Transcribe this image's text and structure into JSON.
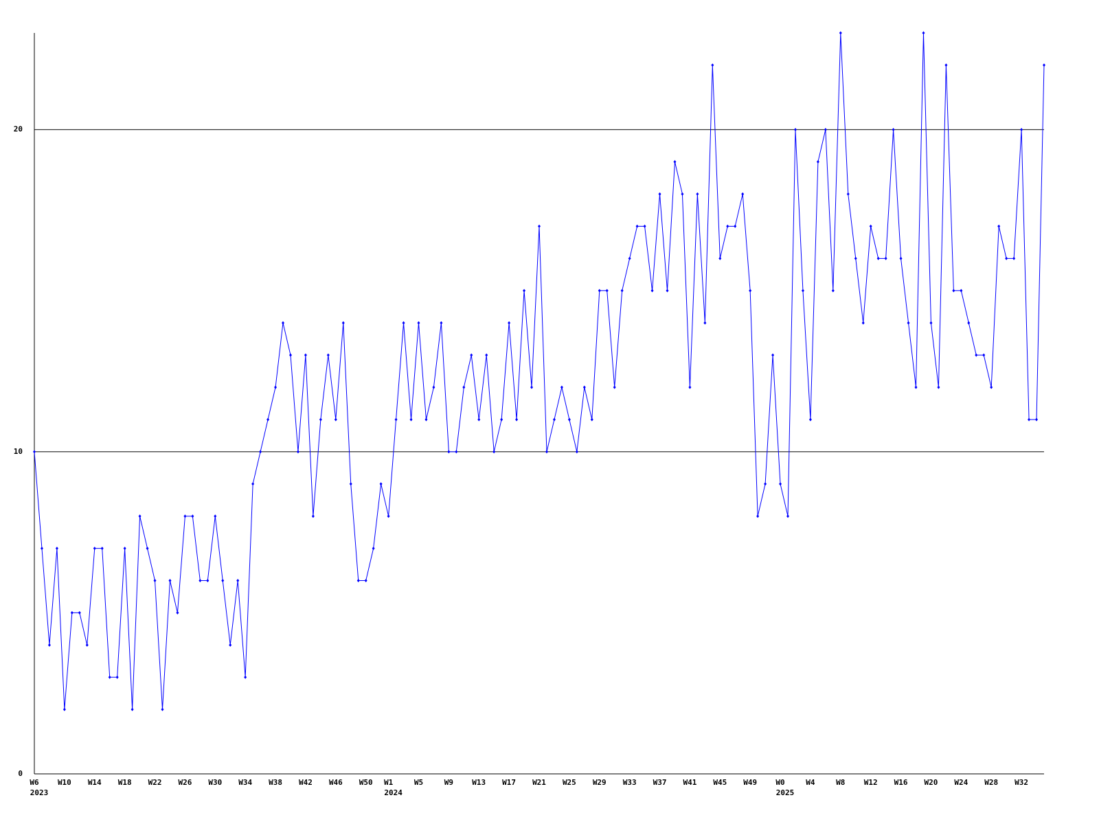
{
  "chart_data": {
    "type": "line",
    "color": "#0000ff",
    "categories": [
      "W6",
      null,
      null,
      null,
      "W10",
      null,
      null,
      null,
      "W14",
      null,
      null,
      null,
      "W18",
      null,
      null,
      null,
      "W22",
      null,
      null,
      null,
      "W26",
      null,
      null,
      null,
      "W30",
      null,
      null,
      null,
      "W34",
      null,
      null,
      null,
      "W38",
      null,
      null,
      null,
      "W42",
      null,
      null,
      null,
      "W46",
      null,
      null,
      null,
      "W50",
      null,
      null,
      "W1",
      null,
      null,
      null,
      "W5",
      null,
      null,
      null,
      "W9",
      null,
      null,
      null,
      "W13",
      null,
      null,
      null,
      "W17",
      null,
      null,
      null,
      "W21",
      null,
      null,
      null,
      "W25",
      null,
      null,
      null,
      "W29",
      null,
      null,
      null,
      "W33",
      null,
      null,
      null,
      "W37",
      null,
      null,
      null,
      "W41",
      null,
      null,
      null,
      "W45",
      null,
      null,
      null,
      "W49",
      null,
      null,
      null,
      "W0",
      null,
      null,
      null,
      "W4",
      null,
      null,
      null,
      "W8",
      null,
      null,
      null,
      "W12",
      null,
      null,
      null,
      "W16",
      null,
      null,
      null,
      "W20",
      null,
      null,
      null,
      "W24",
      null,
      null,
      null,
      "W28",
      null,
      null,
      null,
      "W32",
      null,
      null,
      null
    ],
    "year_labels": [
      "2023",
      null,
      null,
      null,
      null,
      null,
      null,
      null,
      null,
      null,
      null,
      null,
      null,
      null,
      null,
      null,
      null,
      null,
      null,
      null,
      null,
      null,
      null,
      null,
      null,
      null,
      null,
      null,
      null,
      null,
      null,
      null,
      null,
      null,
      null,
      null,
      null,
      null,
      null,
      null,
      null,
      null,
      null,
      null,
      null,
      null,
      null,
      "2024",
      null,
      null,
      null,
      null,
      null,
      null,
      null,
      null,
      null,
      null,
      null,
      null,
      null,
      null,
      null,
      null,
      null,
      null,
      null,
      null,
      null,
      null,
      null,
      null,
      null,
      null,
      null,
      null,
      null,
      null,
      null,
      null,
      null,
      null,
      null,
      null,
      null,
      null,
      null,
      null,
      null,
      null,
      null,
      null,
      null,
      null,
      null,
      null,
      null,
      null,
      null,
      "2025",
      null,
      null,
      null,
      null,
      null,
      null,
      null,
      null,
      null,
      null,
      null,
      null,
      null,
      null,
      null,
      null,
      null,
      null,
      null,
      null,
      null,
      null,
      null,
      null,
      null,
      null,
      null,
      null,
      null,
      null,
      null,
      null,
      null,
      null,
      null
    ],
    "values": [
      10,
      7,
      4,
      7,
      2,
      5,
      5,
      4,
      7,
      7,
      3,
      3,
      7,
      2,
      8,
      7,
      6,
      2,
      6,
      5,
      8,
      8,
      6,
      6,
      8,
      6,
      4,
      6,
      3,
      9,
      10,
      11,
      12,
      14,
      13,
      10,
      13,
      8,
      11,
      13,
      11,
      14,
      9,
      6,
      6,
      7,
      9,
      8,
      11,
      14,
      11,
      14,
      11,
      12,
      14,
      10,
      10,
      12,
      13,
      11,
      13,
      10,
      11,
      14,
      11,
      15,
      12,
      17,
      10,
      11,
      12,
      11,
      10,
      12,
      11,
      15,
      15,
      12,
      15,
      16,
      17,
      17,
      15,
      18,
      15,
      19,
      18,
      12,
      18,
      14,
      22,
      16,
      17,
      17,
      18,
      15,
      8,
      9,
      13,
      9,
      8,
      20,
      15,
      11,
      19,
      20,
      15,
      23,
      18,
      16,
      14,
      17,
      16,
      16,
      20,
      16,
      14,
      12,
      23,
      14,
      12,
      22,
      15,
      15,
      14,
      13,
      13,
      12,
      17,
      16,
      16,
      20,
      11,
      11,
      22
    ],
    "ylim": [
      0,
      23
    ],
    "yticks": [
      0,
      10,
      20
    ],
    "grid": true
  }
}
